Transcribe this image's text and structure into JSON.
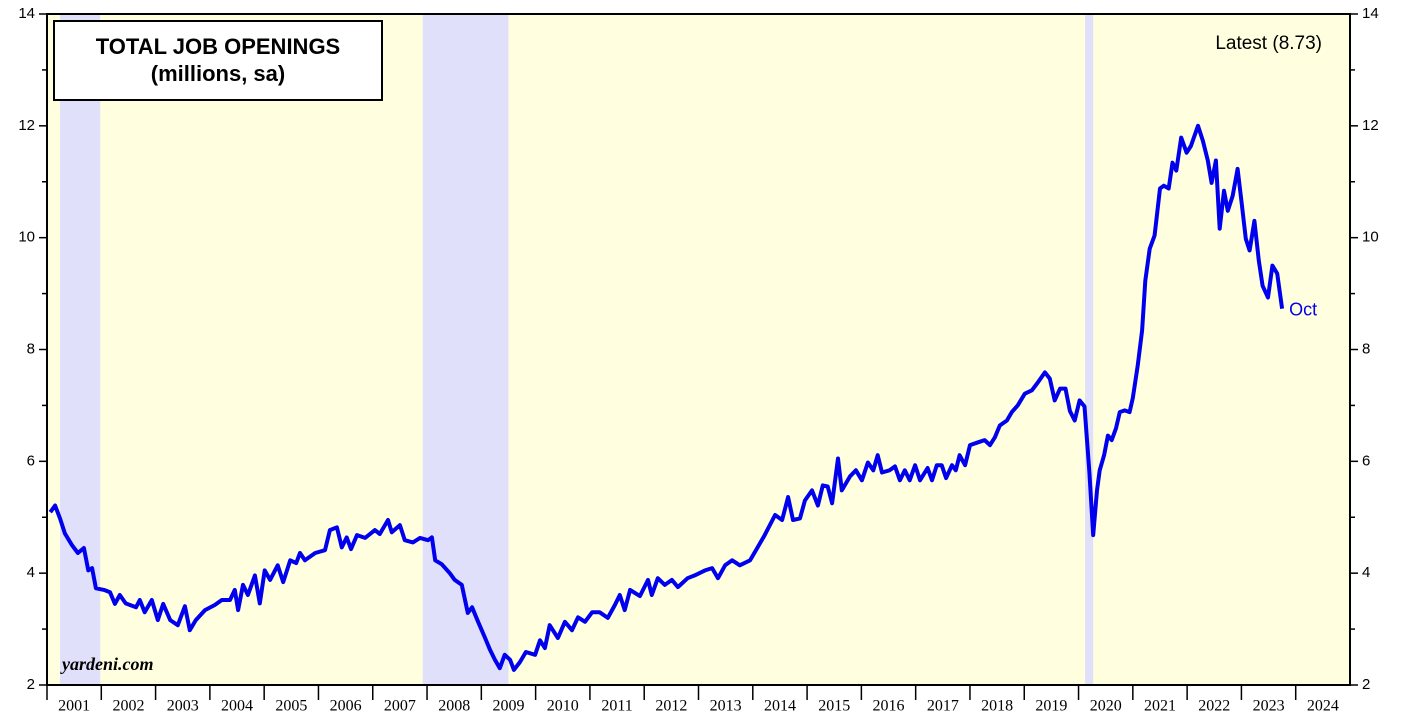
{
  "chart_data": {
    "type": "line",
    "title": "TOTAL JOB OPENINGS",
    "subtitle": "(millions, sa)",
    "annotations": [
      "Latest (8.73)",
      "Oct",
      "yardeni.com"
    ],
    "xlim": [
      2001,
      2025
    ],
    "xticks": [
      2001,
      2002,
      2003,
      2004,
      2005,
      2006,
      2007,
      2008,
      2009,
      2010,
      2011,
      2012,
      2013,
      2014,
      2015,
      2016,
      2017,
      2018,
      2019,
      2020,
      2021,
      2022,
      2023,
      2024
    ],
    "ylim": [
      2,
      14
    ],
    "yticks": [
      2,
      4,
      6,
      8,
      10,
      12,
      14
    ],
    "yticks_minor": [
      3,
      5,
      7,
      9,
      11,
      13
    ],
    "background_color": "#ffffe0",
    "shaded_color": "#e0e0fa",
    "shaded_periods": [
      [
        2001.24,
        2001.98
      ],
      [
        2007.92,
        2009.5
      ],
      [
        2020.12,
        2020.27
      ]
    ],
    "x": [
      2001.06,
      2001.15,
      2001.24,
      2001.33,
      2001.46,
      2001.57,
      2001.68,
      2001.76,
      2001.83,
      2001.9,
      2002.05,
      2002.16,
      2002.25,
      2002.34,
      2002.45,
      2002.64,
      2002.71,
      2002.8,
      2002.93,
      2003.04,
      2003.14,
      2003.27,
      2003.41,
      2003.54,
      2003.63,
      2003.74,
      2003.91,
      2004.09,
      2004.22,
      2004.37,
      2004.46,
      2004.52,
      2004.61,
      2004.7,
      2004.83,
      2004.92,
      2005.01,
      2005.11,
      2005.25,
      2005.35,
      2005.48,
      2005.59,
      2005.66,
      2005.75,
      2005.94,
      2006.12,
      2006.21,
      2006.34,
      2006.43,
      2006.52,
      2006.6,
      2006.71,
      2006.86,
      2007.04,
      2007.13,
      2007.28,
      2007.35,
      2007.5,
      2007.59,
      2007.74,
      2007.87,
      2008.02,
      2008.09,
      2008.15,
      2008.27,
      2008.42,
      2008.51,
      2008.64,
      2008.75,
      2008.83,
      2008.94,
      2009.07,
      2009.16,
      2009.25,
      2009.34,
      2009.43,
      2009.53,
      2009.6,
      2009.71,
      2009.82,
      2009.99,
      2010.08,
      2010.17,
      2010.26,
      2010.41,
      2010.54,
      2010.67,
      2010.78,
      2010.91,
      2011.04,
      2011.18,
      2011.33,
      2011.46,
      2011.55,
      2011.64,
      2011.74,
      2011.92,
      2012.07,
      2012.14,
      2012.25,
      2012.38,
      2012.51,
      2012.62,
      2012.8,
      2012.93,
      2013.12,
      2013.25,
      2013.36,
      2013.49,
      2013.62,
      2013.76,
      2013.95,
      2014.04,
      2014.22,
      2014.41,
      2014.54,
      2014.65,
      2014.74,
      2014.87,
      2014.96,
      2015.09,
      2015.2,
      2015.29,
      2015.38,
      2015.46,
      2015.57,
      2015.64,
      2015.79,
      2015.9,
      2016.01,
      2016.12,
      2016.22,
      2016.3,
      2016.38,
      2016.52,
      2016.62,
      2016.71,
      2016.8,
      2016.89,
      2016.99,
      2017.08,
      2017.22,
      2017.3,
      2017.39,
      2017.48,
      2017.56,
      2017.67,
      2017.74,
      2017.81,
      2017.91,
      2018.0,
      2018.15,
      2018.27,
      2018.37,
      2018.46,
      2018.55,
      2018.68,
      2018.77,
      2018.88,
      2019.01,
      2019.14,
      2019.25,
      2019.38,
      2019.47,
      2019.56,
      2019.66,
      2019.76,
      2019.84,
      2019.93,
      2020.02,
      2020.11,
      2020.2,
      2020.27,
      2020.34,
      2020.39,
      2020.47,
      2020.54,
      2020.61,
      2020.69,
      2020.76,
      2020.85,
      2020.94,
      2021.0,
      2021.09,
      2021.17,
      2021.23,
      2021.31,
      2021.4,
      2021.5,
      2021.57,
      2021.66,
      2021.73,
      2021.8,
      2021.89,
      2021.99,
      2022.07,
      2022.2,
      2022.29,
      2022.38,
      2022.45,
      2022.53,
      2022.6,
      2022.68,
      2022.75,
      2022.84,
      2022.93,
      2023.0,
      2023.08,
      2023.15,
      2023.24,
      2023.32,
      2023.39,
      2023.49,
      2023.57,
      2023.66,
      2023.75
    ],
    "series": [
      {
        "color": "#0000ee",
        "values": [
          5.09,
          5.21,
          4.98,
          4.71,
          4.5,
          4.36,
          4.45,
          4.05,
          4.09,
          3.73,
          3.7,
          3.66,
          3.45,
          3.61,
          3.46,
          3.39,
          3.52,
          3.3,
          3.52,
          3.16,
          3.45,
          3.16,
          3.07,
          3.41,
          2.98,
          3.16,
          3.34,
          3.43,
          3.52,
          3.52,
          3.7,
          3.34,
          3.79,
          3.61,
          3.96,
          3.46,
          4.05,
          3.88,
          4.14,
          3.84,
          4.23,
          4.18,
          4.36,
          4.23,
          4.36,
          4.41,
          4.77,
          4.82,
          4.46,
          4.64,
          4.43,
          4.68,
          4.63,
          4.77,
          4.7,
          4.95,
          4.73,
          4.86,
          4.59,
          4.55,
          4.63,
          4.59,
          4.64,
          4.23,
          4.16,
          4.0,
          3.88,
          3.79,
          3.29,
          3.39,
          3.13,
          2.84,
          2.63,
          2.45,
          2.3,
          2.54,
          2.45,
          2.27,
          2.41,
          2.59,
          2.54,
          2.8,
          2.66,
          3.07,
          2.84,
          3.13,
          2.98,
          3.21,
          3.13,
          3.3,
          3.3,
          3.2,
          3.43,
          3.61,
          3.34,
          3.7,
          3.59,
          3.88,
          3.61,
          3.91,
          3.79,
          3.88,
          3.75,
          3.91,
          3.96,
          4.05,
          4.09,
          3.91,
          4.14,
          4.23,
          4.14,
          4.23,
          4.38,
          4.68,
          5.04,
          4.95,
          5.36,
          4.95,
          4.98,
          5.3,
          5.48,
          5.21,
          5.57,
          5.55,
          5.25,
          6.05,
          5.48,
          5.73,
          5.84,
          5.66,
          5.98,
          5.84,
          6.11,
          5.8,
          5.84,
          5.91,
          5.66,
          5.84,
          5.66,
          5.93,
          5.66,
          5.88,
          5.66,
          5.93,
          5.93,
          5.7,
          5.93,
          5.84,
          6.11,
          5.93,
          6.29,
          6.34,
          6.38,
          6.29,
          6.43,
          6.64,
          6.73,
          6.88,
          7.0,
          7.21,
          7.27,
          7.41,
          7.59,
          7.48,
          7.09,
          7.3,
          7.3,
          6.9,
          6.73,
          7.09,
          6.98,
          5.8,
          4.68,
          5.48,
          5.84,
          6.11,
          6.46,
          6.38,
          6.59,
          6.88,
          6.91,
          6.88,
          7.13,
          7.71,
          8.34,
          9.23,
          9.8,
          10.04,
          10.88,
          10.93,
          10.88,
          11.34,
          11.2,
          11.79,
          11.52,
          11.64,
          12.0,
          11.73,
          11.38,
          10.98,
          11.38,
          10.16,
          10.84,
          10.48,
          10.75,
          11.23,
          10.66,
          9.98,
          9.77,
          10.3,
          9.59,
          9.14,
          8.93,
          9.5,
          9.36,
          8.73
        ]
      }
    ]
  }
}
